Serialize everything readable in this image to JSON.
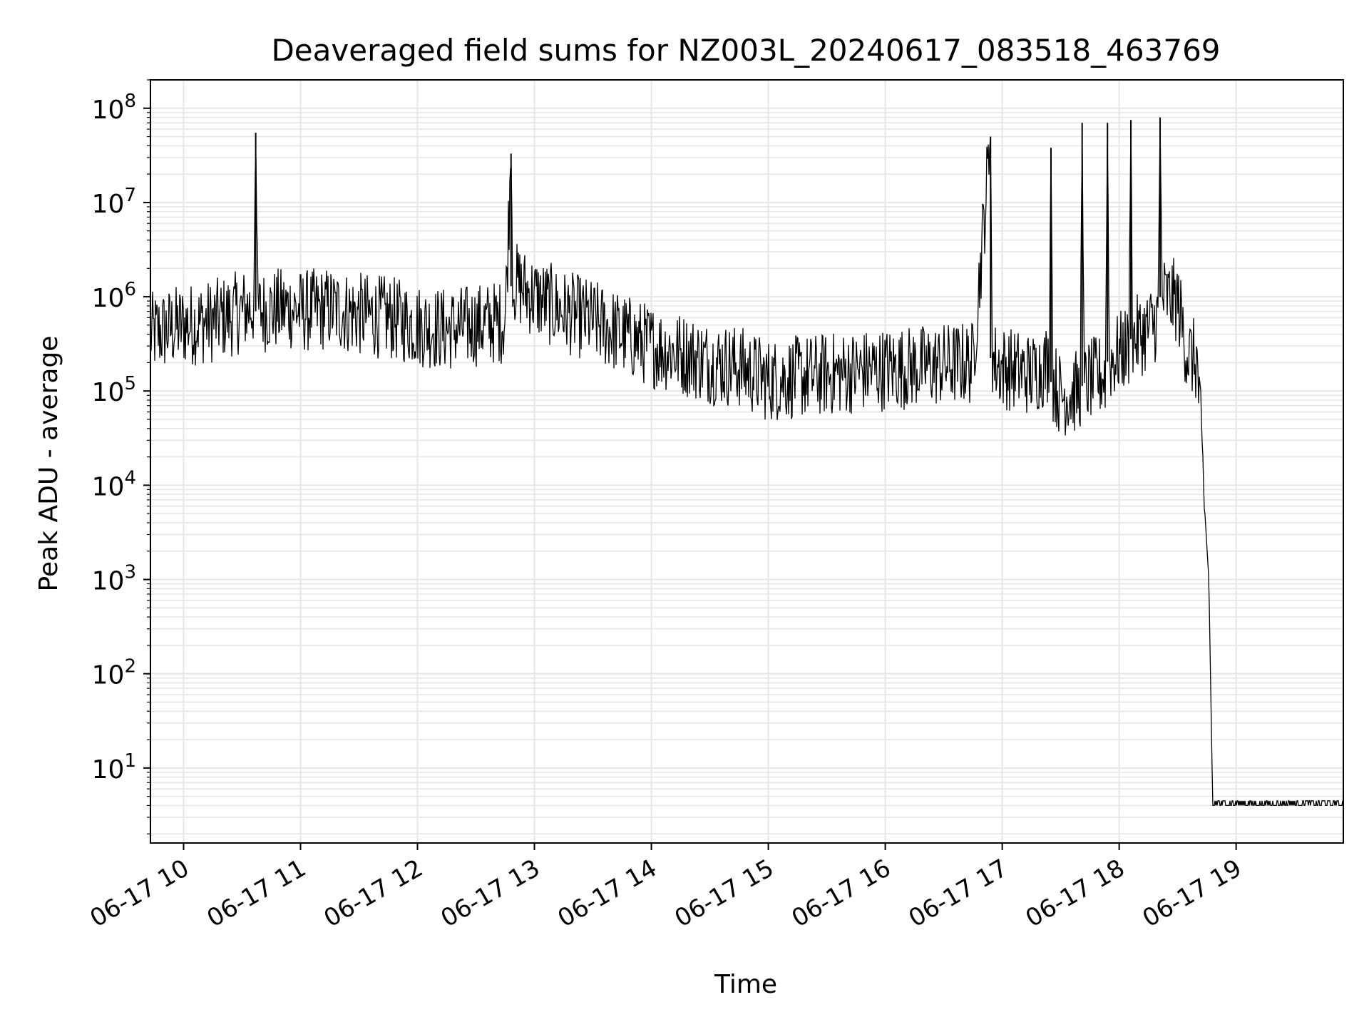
{
  "chart_data": {
    "type": "line",
    "title": "Deaveraged field sums for NZ003L_20240617_083518_463769",
    "xlabel": "Time",
    "ylabel": "Peak ADU - average",
    "yscale": "log",
    "ylim": [
      1.6,
      200000000
    ],
    "xlim": [
      "2024-06-17 09:43",
      "2024-06-17 19:55"
    ],
    "x_ticks": [
      "06-17 10",
      "06-17 11",
      "06-17 12",
      "06-17 13",
      "06-17 14",
      "06-17 15",
      "06-17 16",
      "06-17 17",
      "06-17 18",
      "06-17 19"
    ],
    "y_ticks": [
      {
        "base": "10",
        "exp": "1"
      },
      {
        "base": "10",
        "exp": "2"
      },
      {
        "base": "10",
        "exp": "3"
      },
      {
        "base": "10",
        "exp": "4"
      },
      {
        "base": "10",
        "exp": "5"
      },
      {
        "base": "10",
        "exp": "6"
      },
      {
        "base": "10",
        "exp": "7"
      },
      {
        "base": "10",
        "exp": "8"
      }
    ],
    "grid": true,
    "line_color": "#000000",
    "grid_color": "#e6e6e6",
    "series": [
      {
        "x": [
          "09:43",
          "10:00",
          "10:15",
          "10:30",
          "10:36",
          "10:37",
          "10:38",
          "10:55",
          "11:00",
          "11:15",
          "11:30",
          "11:45",
          "12:00",
          "12:15",
          "12:30",
          "12:45",
          "12:48",
          "12:49",
          "12:50",
          "13:00",
          "13:15",
          "13:30",
          "13:45",
          "14:00",
          "14:15",
          "14:30",
          "14:45",
          "15:00",
          "15:15",
          "15:30",
          "15:45",
          "16:00",
          "16:15",
          "16:30",
          "16:45",
          "16:54",
          "16:55",
          "16:56",
          "17:00",
          "17:15",
          "17:24",
          "17:25",
          "17:26",
          "17:30",
          "17:40",
          "17:41",
          "17:42",
          "17:45",
          "17:53",
          "17:54",
          "17:55",
          "18:00",
          "18:05",
          "18:06",
          "18:07",
          "18:15",
          "18:20",
          "18:21",
          "18:22",
          "18:30",
          "18:35",
          "18:40",
          "18:44",
          "18:46",
          "18:48",
          "18:49",
          "18:50",
          "19:00",
          "19:30",
          "19:55"
        ],
        "y": [
          400000,
          500000,
          550000,
          700000,
          800000,
          55000000,
          700000,
          750000,
          700000,
          750000,
          650000,
          600000,
          500000,
          450000,
          500000,
          550000,
          33000000,
          1200000,
          1400000,
          1000000,
          700000,
          550000,
          400000,
          300000,
          250000,
          200000,
          180000,
          130000,
          140000,
          150000,
          160000,
          170000,
          180000,
          190000,
          200000,
          50000000,
          250000,
          200000,
          180000,
          150000,
          200000,
          38000000,
          130000,
          90000,
          100000,
          70000000,
          110000,
          130000,
          150000,
          70000000,
          200000,
          250000,
          300000,
          75000000,
          350000,
          450000,
          600000,
          80000000,
          1000000,
          900000,
          250000,
          200000,
          5000,
          1000,
          4,
          4,
          4,
          4,
          4,
          4
        ]
      }
    ]
  }
}
